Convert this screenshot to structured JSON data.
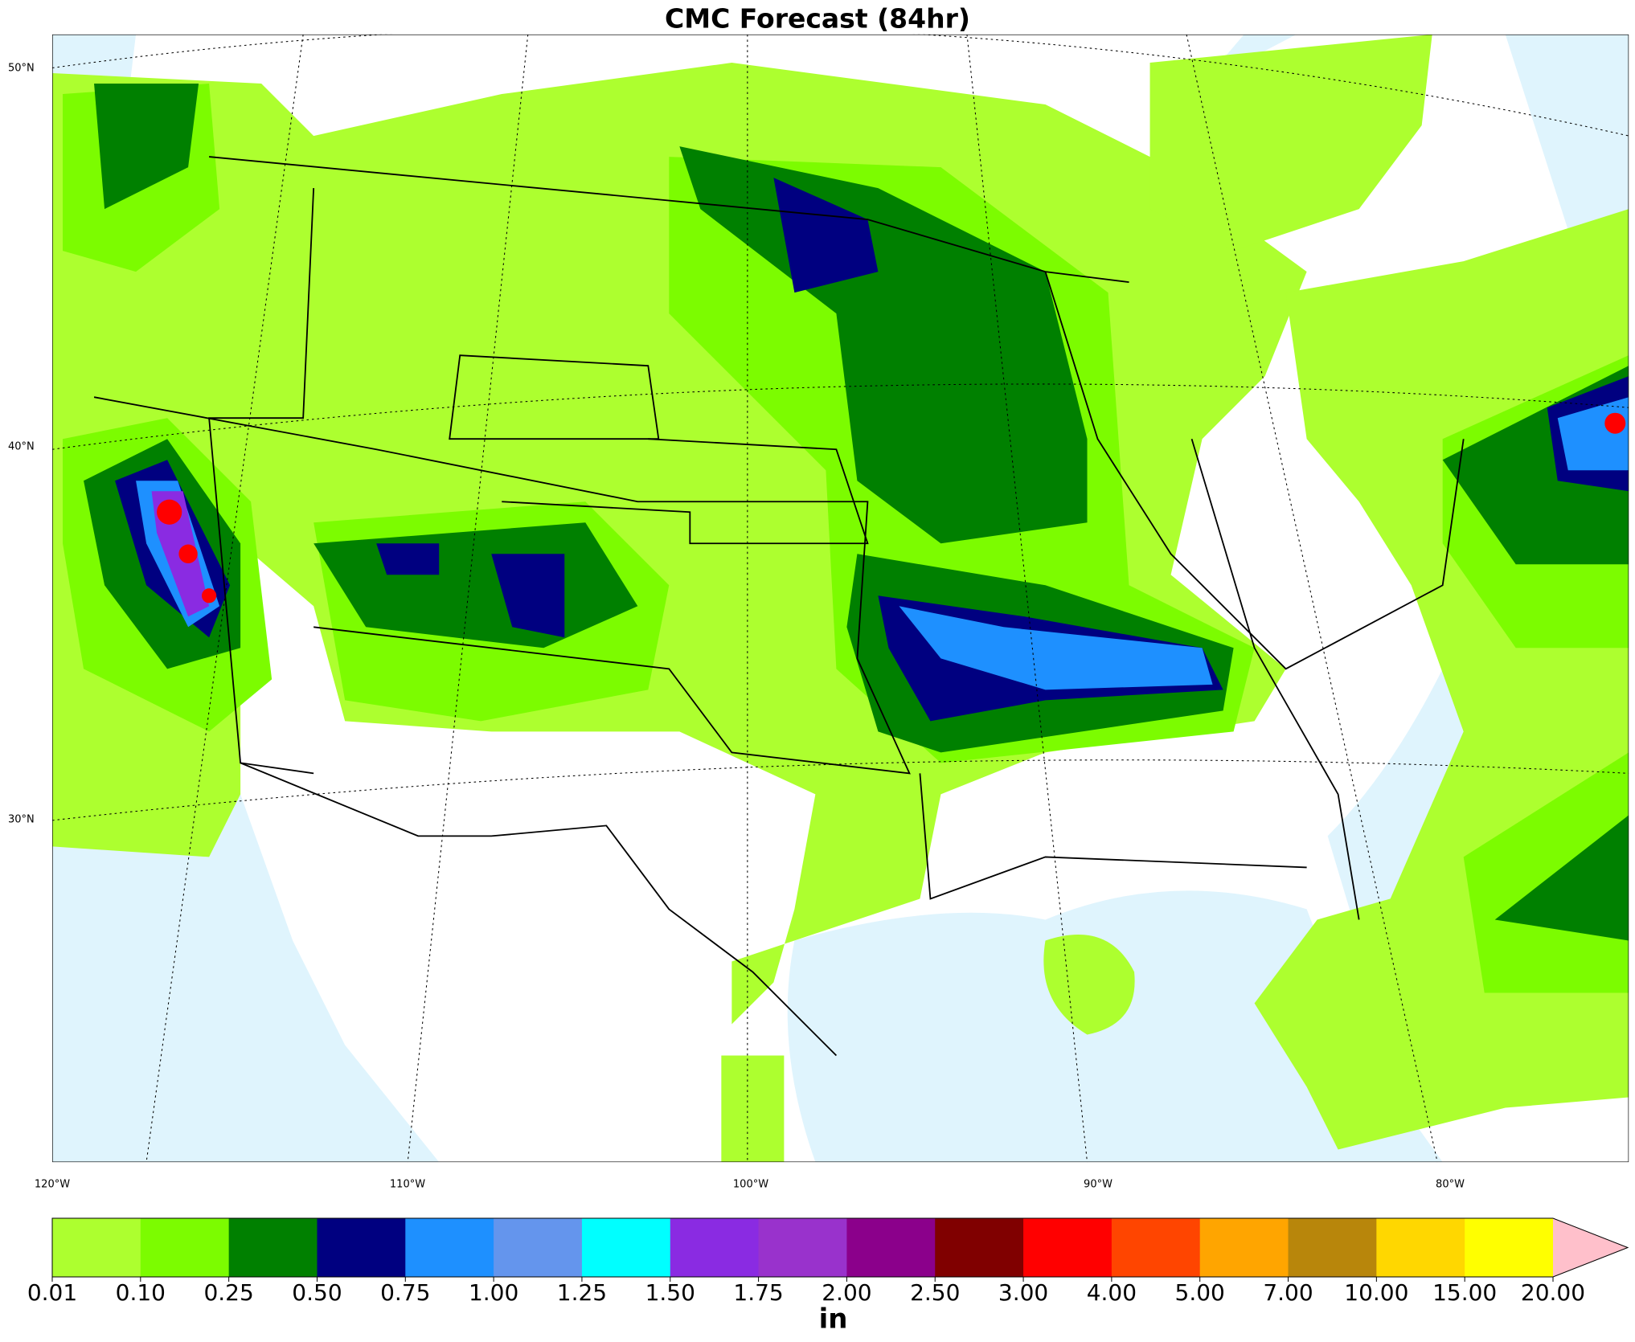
{
  "title": "CMC Forecast (84hr)",
  "lat_labels": [
    "50°N",
    "40°N",
    "30°N"
  ],
  "lon_labels": [
    "120°W",
    "110°W",
    "100°W",
    "90°W",
    "80°W"
  ],
  "colorbar": {
    "label": "in",
    "ticks": [
      "0.01",
      "0.10",
      "0.25",
      "0.50",
      "0.75",
      "1.00",
      "1.25",
      "1.50",
      "1.75",
      "2.00",
      "2.50",
      "3.00",
      "4.00",
      "5.00",
      "7.00",
      "10.00",
      "15.00",
      "20.00"
    ],
    "colors": [
      "#adff2f",
      "#7cfc00",
      "#008000",
      "#000080",
      "#1e90ff",
      "#6495ed",
      "#00ffff",
      "#8a2be2",
      "#9932cc",
      "#8b008b",
      "#800000",
      "#ff0000",
      "#ff4500",
      "#ffa500",
      "#b8860b",
      "#ffd700",
      "#ffff00"
    ],
    "extend_color": "#ffc0cb"
  }
}
